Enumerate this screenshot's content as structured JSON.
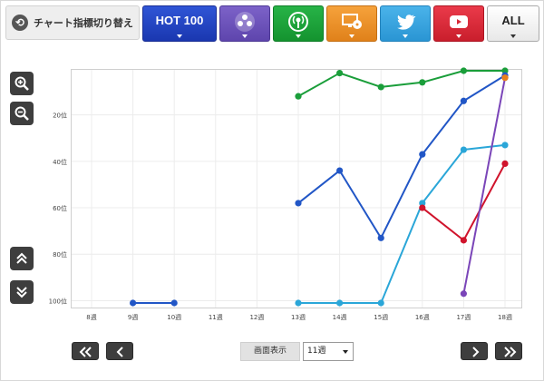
{
  "toolbar": {
    "switch_label": "チャート指標切り替え",
    "switch_icon": "refresh-icon",
    "tabs": [
      {
        "id": "hot100",
        "label": "HOT 100",
        "color": "#2244c8"
      },
      {
        "id": "social",
        "icon": "people-icon",
        "color": "#6a4fbd"
      },
      {
        "id": "radio",
        "icon": "radio-broadcast-icon",
        "color": "#1ea53c"
      },
      {
        "id": "pc",
        "icon": "pc-cd-icon",
        "color": "#ec9027"
      },
      {
        "id": "twitter",
        "icon": "twitter-bird-icon",
        "color": "#35a4e0"
      },
      {
        "id": "youtube",
        "icon": "youtube-play-icon",
        "color": "#d82a38"
      },
      {
        "id": "all",
        "label": "ALL",
        "color": "#ffffff"
      }
    ]
  },
  "side_controls": {
    "zoom_in_icon": "zoom-in-icon",
    "zoom_out_icon": "zoom-out-icon",
    "scroll_up_icon": "double-chevron-up-icon",
    "scroll_down_icon": "double-chevron-down-icon"
  },
  "footer": {
    "display_label": "画面表示",
    "display_value": "11週",
    "first_icon": "double-chevron-left-icon",
    "prev_icon": "chevron-left-icon",
    "next_icon": "chevron-right-icon",
    "last_icon": "double-chevron-right-icon"
  },
  "chart_data": {
    "type": "line",
    "y_inverted": true,
    "ylim": [
      1,
      101
    ],
    "y_ticks": [
      20,
      40,
      60,
      80,
      100
    ],
    "y_tick_labels": [
      "20位",
      "40位",
      "60位",
      "80位",
      "100位"
    ],
    "categories": [
      "8週",
      "9週",
      "10週",
      "11週",
      "12週",
      "13週",
      "14週",
      "15週",
      "16週",
      "17週",
      "18週"
    ],
    "grid": true,
    "series": [
      {
        "color": "#1a9e3a",
        "values": [
          null,
          null,
          null,
          null,
          null,
          12,
          2,
          8,
          6,
          1,
          1
        ]
      },
      {
        "color": "#2156c6",
        "values": [
          null,
          101,
          101,
          null,
          null,
          58,
          44,
          73,
          37,
          14,
          3
        ]
      },
      {
        "color": "#2aa6d8",
        "values": [
          null,
          null,
          null,
          null,
          null,
          101,
          101,
          101,
          58,
          35,
          33
        ]
      },
      {
        "color": "#d0142c",
        "values": [
          null,
          null,
          null,
          null,
          null,
          null,
          null,
          null,
          60,
          74,
          41
        ]
      },
      {
        "color": "#7a45b8",
        "values": [
          null,
          null,
          null,
          null,
          null,
          null,
          null,
          null,
          null,
          97,
          4
        ]
      },
      {
        "color": "#e8801a",
        "values": [
          null,
          null,
          null,
          null,
          null,
          null,
          null,
          null,
          null,
          null,
          4
        ]
      }
    ]
  }
}
